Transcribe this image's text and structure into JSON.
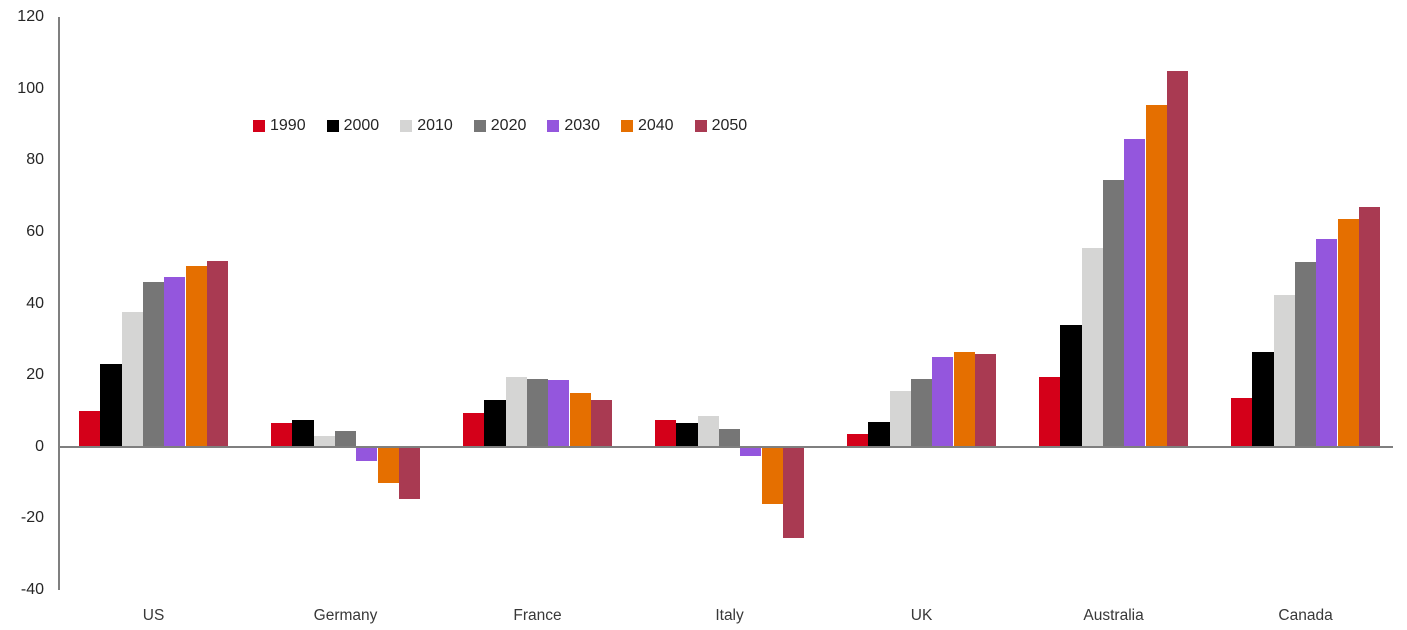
{
  "chart_data": {
    "type": "bar",
    "categories": [
      "US",
      "Germany",
      "France",
      "Italy",
      "UK",
      "Australia",
      "Canada"
    ],
    "series": [
      {
        "name": "1990",
        "color": "#d40019",
        "values": [
          10,
          6.5,
          9.5,
          7.5,
          3.5,
          19.5,
          13.5
        ]
      },
      {
        "name": "2000",
        "color": "#000000",
        "values": [
          23,
          7.5,
          13,
          6.5,
          7,
          34,
          26.5
        ]
      },
      {
        "name": "2010",
        "color": "#d5d5d4",
        "values": [
          37.5,
          3,
          19.5,
          8.5,
          15.5,
          55.5,
          42.5
        ]
      },
      {
        "name": "2020",
        "color": "#767676",
        "values": [
          46,
          4.5,
          19,
          5,
          19,
          74.5,
          51.5
        ]
      },
      {
        "name": "2030",
        "color": "#9456dd",
        "values": [
          47.5,
          -4,
          18.5,
          -2.5,
          25,
          86,
          58
        ]
      },
      {
        "name": "2040",
        "color": "#e56f00",
        "values": [
          50.5,
          -10,
          15,
          -16,
          26.5,
          95.5,
          63.5
        ]
      },
      {
        "name": "2050",
        "color": "#a93a52",
        "values": [
          52,
          -14.5,
          13,
          -25.5,
          26,
          105,
          67
        ]
      }
    ],
    "ylim": [
      -40,
      120
    ],
    "y_ticks": [
      120,
      100,
      80,
      60,
      40,
      20,
      0,
      -20,
      -40
    ],
    "grid": false,
    "legend_position": "top-inset",
    "axis_color": "#7f7f7f",
    "tick_label_color": "#262626"
  }
}
